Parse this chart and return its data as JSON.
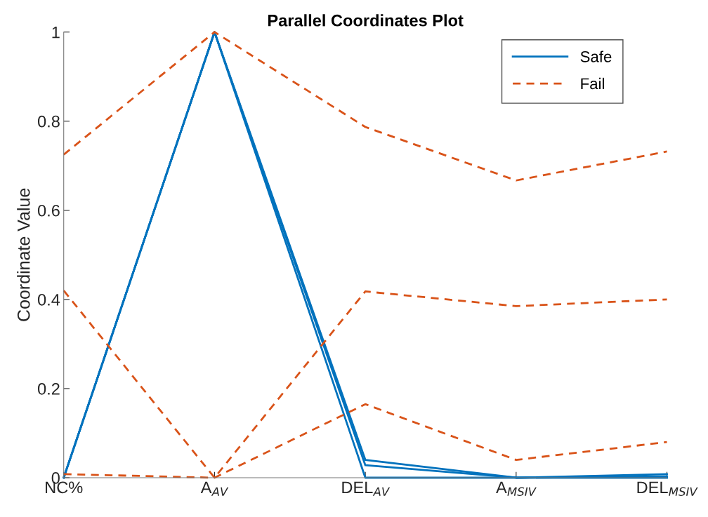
{
  "chart_data": {
    "type": "line",
    "title": "Parallel Coordinates Plot",
    "ylabel": "Coordinate Value",
    "categories": [
      "NC%",
      "A$_{AV}$",
      "DEL$_{AV}$",
      "A$_{MSIV}$",
      "DEL$_{MSIV}$"
    ],
    "series": [
      {
        "name": "Safe",
        "color": "#0072bd",
        "line_style": "solid",
        "values": [
          0,
          1,
          0.04,
          0,
          0.008
        ]
      },
      {
        "color": "#0072bd",
        "line_style": "solid",
        "values": [
          0,
          1,
          0.028,
          0,
          0.003
        ]
      },
      {
        "color": "#0072bd",
        "line_style": "solid",
        "values": [
          0,
          1,
          0,
          0,
          0
        ]
      },
      {
        "name": "Fail",
        "color": "#d95319",
        "line_style": "dashed",
        "values": [
          0.725,
          1,
          0.787,
          0.667,
          0.732
        ]
      },
      {
        "color": "#d95319",
        "line_style": "dashed",
        "values": [
          0.42,
          0,
          0.418,
          0.385,
          0.4
        ]
      },
      {
        "color": "#d95319",
        "line_style": "dashed",
        "values": [
          0.008,
          0,
          0.165,
          0.04,
          0.08
        ]
      }
    ],
    "ylim": [
      0,
      1
    ],
    "yticks": [
      0,
      0.2,
      0.4,
      0.6,
      0.8,
      1
    ],
    "grid": false,
    "legend": "top right",
    "marker": "none"
  }
}
